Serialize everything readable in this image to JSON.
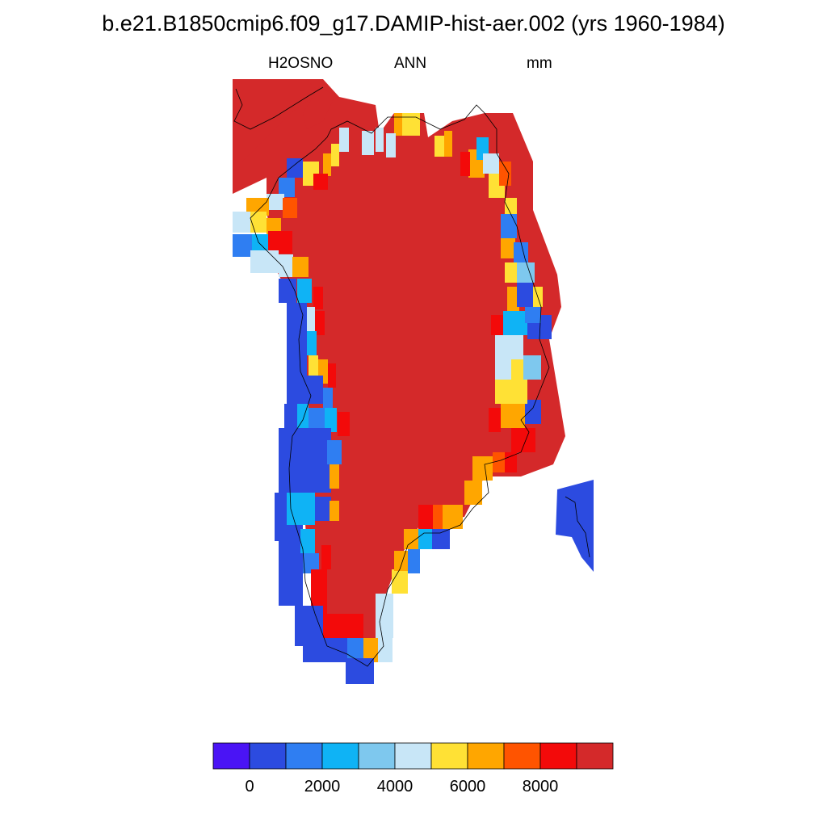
{
  "header": {
    "title": "b.e21.B1850cmip6.f09_g17.DAMIP-hist-aer.002 (yrs 1960-1984)",
    "variable": "H2OSNO",
    "season": "ANN",
    "units": "mm"
  },
  "colorbar": {
    "colors": [
      "#4a14f5",
      "#2c4be0",
      "#2f7ef2",
      "#0fb3f5",
      "#7ec8ee",
      "#c8e6f7",
      "#ffe135",
      "#ffa600",
      "#ff5400",
      "#f30a0a",
      "#d4292a"
    ],
    "tick_labels": [
      "0",
      "2000",
      "4000",
      "6000",
      "8000"
    ]
  },
  "map": {
    "region": "Greenland",
    "levels_mm": "0 to >9000",
    "interior_value_class": ">9000",
    "margin_value_classes": [
      "0-1000",
      "1000-2000",
      "2000-3000",
      "3000-4000",
      "4000-5000",
      "5000-6000",
      "6000-7000",
      "7000-8000",
      "8000-9000"
    ]
  }
}
